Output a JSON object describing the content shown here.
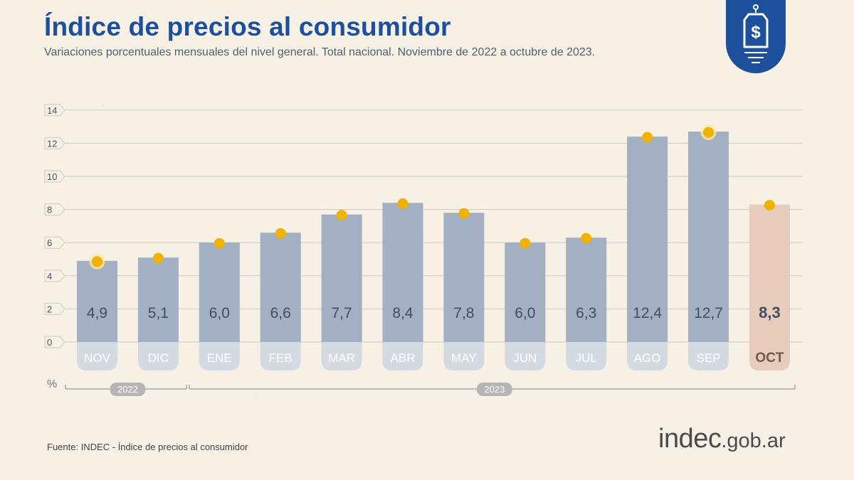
{
  "header": {
    "title": "Índice de precios al consumidor",
    "subtitle": "Variaciones porcentuales mensuales del nivel general. Total nacional. Noviembre de 2022 a octubre de 2023."
  },
  "logo": {
    "icon": "price-tag-dollar-icon",
    "symbol": "$",
    "background": "#1c4f9c",
    "foreground": "#ffffff"
  },
  "footer": {
    "source": "Fuente: INDEC - Índice de precios al consumidor",
    "brand_main": "indec",
    "brand_domain": ".gob.ar"
  },
  "chart_data": {
    "type": "bar",
    "categories": [
      "NOV",
      "DIC",
      "ENE",
      "FEB",
      "MAR",
      "ABR",
      "MAY",
      "JUN",
      "JUL",
      "AGO",
      "SEP",
      "OCT"
    ],
    "values": [
      4.9,
      5.1,
      6.0,
      6.6,
      7.7,
      8.4,
      7.8,
      6.0,
      6.3,
      12.4,
      12.7,
      8.3
    ],
    "value_labels": [
      "4,9",
      "5,1",
      "6,0",
      "6,6",
      "7,7",
      "8,4",
      "7,8",
      "6,0",
      "6,3",
      "12,4",
      "12,7",
      "8,3"
    ],
    "highlight_category": "OCT",
    "marker_halo_categories": [
      "NOV",
      "SEP"
    ],
    "yticks": [
      0,
      2,
      4,
      6,
      8,
      10,
      12,
      14
    ],
    "ylim": [
      0,
      14
    ],
    "yunit": "%",
    "year_groups": [
      {
        "label": "2022",
        "categories": [
          "NOV",
          "DIC"
        ]
      },
      {
        "label": "2023",
        "categories": [
          "ENE",
          "FEB",
          "MAR",
          "ABR",
          "MAY",
          "JUN",
          "JUL",
          "AGO",
          "SEP",
          "OCT"
        ]
      }
    ],
    "grid": true,
    "colors": {
      "bar": "#a3afc2",
      "highlight_bar": "#e7cbbb",
      "marker": "#f0b200",
      "label": "#3f4e63",
      "month_pill": "#d4dae2",
      "highlight_month_pill": "#e7cbbb",
      "year_pill": "#b5b5b5",
      "grid": "#cfcac1"
    }
  }
}
